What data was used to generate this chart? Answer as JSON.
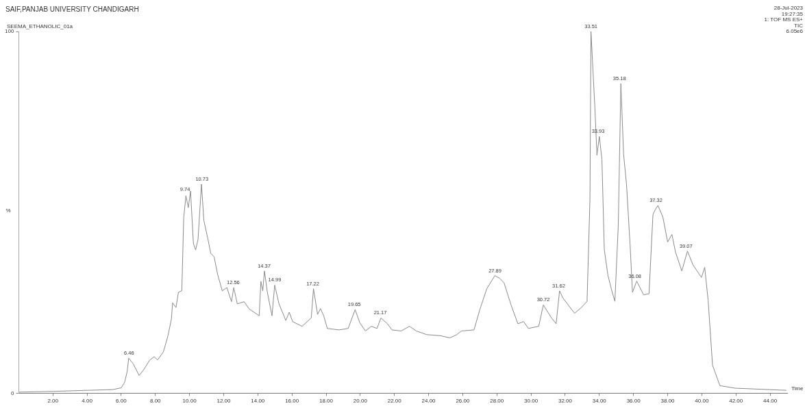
{
  "chart_data": {
    "type": "line",
    "title": "SAIF,PANJAB UNIVERSITY CHANDIGARH",
    "subtitle": "SEEMA_ETHANOLIC_01a",
    "xlabel": "Time",
    "ylabel": "%",
    "x": [
      0,
      2,
      4,
      5.5,
      6.0,
      6.2,
      6.35,
      6.44,
      6.71,
      7.05,
      7.32,
      7.66,
      7.93,
      8.13,
      8.47,
      8.74,
      8.94,
      9.01,
      9.21,
      9.35,
      9.55,
      9.66,
      9.79,
      9.93,
      10.06,
      10.23,
      10.36,
      10.5,
      10.7,
      10.84,
      11.11,
      11.24,
      11.44,
      11.65,
      11.92,
      12.19,
      12.46,
      12.59,
      12.8,
      13.2,
      13.47,
      14.08,
      14.18,
      14.29,
      14.39,
      14.56,
      14.83,
      14.99,
      15.24,
      15.64,
      15.84,
      16.04,
      16.59,
      17.13,
      17.26,
      17.5,
      17.67,
      17.86,
      18.07,
      18.75,
      19.29,
      19.7,
      19.97,
      20.3,
      20.65,
      20.98,
      21.21,
      21.59,
      21.86,
      22.4,
      22.88,
      23.28,
      23.89,
      24.7,
      25.24,
      25.65,
      25.92,
      26.66,
      27.0,
      27.41,
      27.88,
      28.15,
      28.42,
      28.83,
      29.23,
      29.57,
      29.84,
      30.45,
      30.72,
      31.2,
      31.47,
      31.67,
      31.87,
      32.55,
      32.95,
      33.28,
      33.45,
      33.51,
      33.74,
      33.86,
      34.0,
      34.15,
      34.29,
      34.5,
      34.72,
      34.91,
      35.11,
      35.26,
      35.42,
      35.59,
      35.8,
      35.94,
      36.19,
      36.59,
      36.91,
      37.14,
      37.28,
      37.43,
      37.72,
      38.0,
      38.25,
      38.46,
      38.83,
      39.16,
      39.48,
      39.98,
      40.17,
      40.37,
      40.63,
      41.06,
      41.93,
      44.95
    ],
    "series": [
      {
        "color": "#8a8a8a",
        "values": [
          0.3,
          0.5,
          0.8,
          1,
          1.5,
          3,
          6,
          9.7,
          8.1,
          4.9,
          6.5,
          9.1,
          10.1,
          9.2,
          11.4,
          15.9,
          20.5,
          25,
          23.7,
          27.9,
          28.3,
          48.4,
          54.6,
          51.3,
          55.9,
          41.3,
          39.6,
          42.6,
          57.8,
          47.8,
          41.9,
          38.7,
          37.7,
          32.8,
          28.3,
          29.2,
          25.3,
          29.2,
          24.7,
          25.3,
          23.4,
          21.4,
          30.9,
          28.3,
          33.8,
          27.9,
          21.4,
          29.9,
          24.7,
          20.1,
          22.4,
          19.8,
          18.5,
          20.8,
          28.9,
          21.8,
          23.4,
          21.4,
          17.9,
          17.5,
          17.9,
          23.1,
          19.5,
          17.2,
          18.5,
          17.9,
          20.8,
          19.2,
          17.5,
          17.2,
          18.5,
          17.2,
          16.2,
          15.9,
          15.3,
          16.2,
          17.2,
          17.5,
          23.1,
          28.9,
          32.5,
          31.8,
          30.5,
          24.4,
          19.2,
          19.8,
          17.9,
          18.5,
          24.4,
          20.8,
          19.2,
          28.3,
          26.3,
          22.1,
          23.7,
          25.4,
          53.6,
          100,
          78.8,
          65.8,
          71,
          64.7,
          39.7,
          32.7,
          28.5,
          25.4,
          46.6,
          85.6,
          66.1,
          57.8,
          41.1,
          27.9,
          31,
          27.2,
          27.5,
          49.4,
          50.8,
          51.9,
          48.7,
          41.8,
          43.9,
          39,
          33.8,
          39.3,
          35.5,
          32,
          34.8,
          25.7,
          7.7,
          2.1,
          1.4,
          0.8
        ]
      }
    ],
    "xlim": [
      0,
      45
    ],
    "ylim": [
      0,
      100
    ],
    "yticks": [
      0,
      100
    ],
    "xticks": [
      {
        "value": 2,
        "label": "2.00"
      },
      {
        "value": 4,
        "label": "4.00"
      },
      {
        "value": 6,
        "label": "6.00"
      },
      {
        "value": 8,
        "label": "8.00"
      },
      {
        "value": 10,
        "label": "10.00"
      },
      {
        "value": 12,
        "label": "12.00"
      },
      {
        "value": 14,
        "label": "14.00"
      },
      {
        "value": 16,
        "label": "16.00"
      },
      {
        "value": 18,
        "label": "18.00"
      },
      {
        "value": 20,
        "label": "20.00"
      },
      {
        "value": 22,
        "label": "22.00"
      },
      {
        "value": 24,
        "label": "24.00"
      },
      {
        "value": 26,
        "label": "26.00"
      },
      {
        "value": 28,
        "label": "28.00"
      },
      {
        "value": 30,
        "label": "30.00"
      },
      {
        "value": 32,
        "label": "32.00"
      },
      {
        "value": 34,
        "label": "34.00"
      },
      {
        "value": 36,
        "label": "36.00"
      },
      {
        "value": 38,
        "label": "38.00"
      },
      {
        "value": 40,
        "label": "40.00"
      },
      {
        "value": 42,
        "label": "42.00"
      },
      {
        "value": 44,
        "label": "44.00"
      }
    ],
    "grid": false,
    "legend": false,
    "marker": "none",
    "line_style": "solid",
    "annotations": [
      "28-Jul-2023",
      "19:27:35",
      "1: TOF MS ES+",
      "TIC",
      "6.05e6",
      {
        "text": "6.46",
        "x": 6.46,
        "y": 9.7
      },
      {
        "text": "9.74",
        "x": 9.74,
        "y": 55
      },
      {
        "text": "10.73",
        "x": 10.73,
        "y": 57.8
      },
      {
        "text": "12.56",
        "x": 12.56,
        "y": 29.2
      },
      {
        "text": "14.37",
        "x": 14.37,
        "y": 33.8
      },
      {
        "text": "14.99",
        "x": 14.99,
        "y": 29.9
      },
      {
        "text": "17.22",
        "x": 17.22,
        "y": 28.9
      },
      {
        "text": "19.65",
        "x": 19.65,
        "y": 23.1
      },
      {
        "text": "21.17",
        "x": 21.17,
        "y": 20.8
      },
      {
        "text": "27.89",
        "x": 27.89,
        "y": 32.5
      },
      {
        "text": "30.72",
        "x": 30.72,
        "y": 24.4
      },
      {
        "text": "31.62",
        "x": 31.62,
        "y": 28.3
      },
      {
        "text": "33.51",
        "x": 33.51,
        "y": 100
      },
      {
        "text": "33.93",
        "x": 33.93,
        "y": 71
      },
      {
        "text": "35.18",
        "x": 35.18,
        "y": 85.6
      },
      {
        "text": "36.08",
        "x": 36.08,
        "y": 31
      },
      {
        "text": "37.32",
        "x": 37.32,
        "y": 51.9
      },
      {
        "text": "39.07",
        "x": 39.07,
        "y": 39.3
      }
    ]
  }
}
